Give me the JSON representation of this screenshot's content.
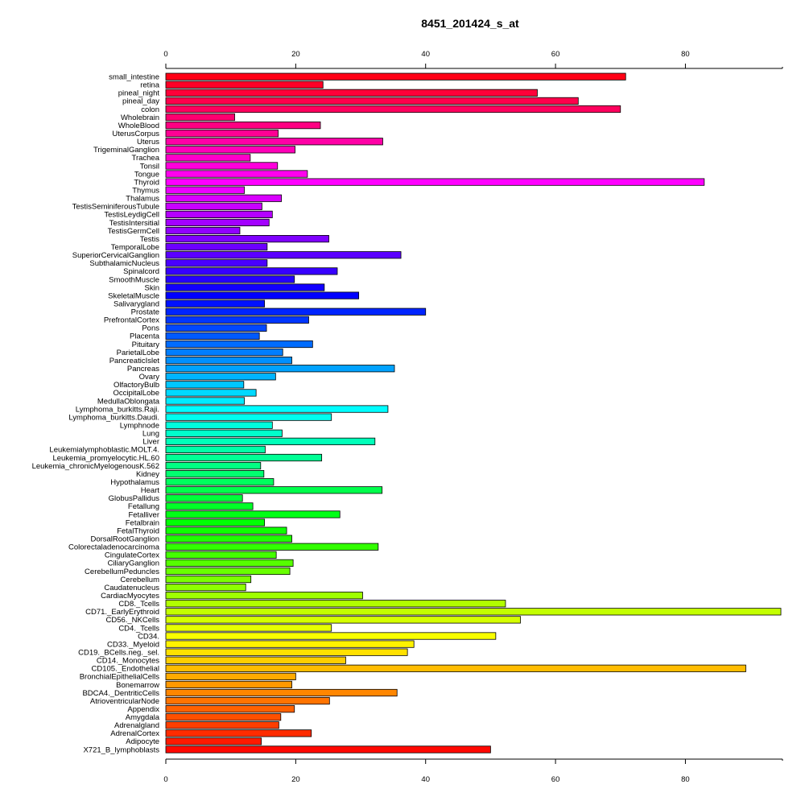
{
  "chart_data": {
    "type": "bar",
    "orientation": "horizontal",
    "title": "8451_201424_s_at",
    "xlabel": "",
    "ylabel": "",
    "xlim": [
      0,
      95
    ],
    "xticks": [
      0,
      20,
      40,
      60,
      80
    ],
    "grid": false,
    "categories": [
      "small_intestine",
      "retina",
      "pineal_night",
      "pineal_day",
      "colon",
      "Wholebrain",
      "WholeBlood",
      "UterusCorpus",
      "Uterus",
      "TrigeminalGanglion",
      "Trachea",
      "Tonsil",
      "Tongue",
      "Thyroid",
      "Thymus",
      "Thalamus",
      "TestisSeminiferousTubule",
      "TestisLeydigCell",
      "TestisIntersitial",
      "TestisGermCell",
      "Testis",
      "TemporalLobe",
      "SuperiorCervicalGanglion",
      "SubthalamicNucleus",
      "Spinalcord",
      "SmoothMuscle",
      "Skin",
      "SkeletalMuscle",
      "Salivarygland",
      "Prostate",
      "PrefrontalCortex",
      "Pons",
      "Placenta",
      "Pituitary",
      "ParietalLobe",
      "PancreaticIslet",
      "Pancreas",
      "Ovary",
      "OlfactoryBulb",
      "OccipitalLobe",
      "MedullaOblongata",
      "Lymphoma_burkitts.Raji.",
      "Lymphoma_burkitts.Daudi.",
      "Lymphnode",
      "Lung",
      "Liver",
      "Leukemialymphoblastic.MOLT.4.",
      "Leukemia_promyelocytic.HL.60",
      "Leukemia_chronicMyelogenousK.562",
      "Kidney",
      "Hypothalamus",
      "Heart",
      "GlobusPallidus",
      "Fetallung",
      "Fetalliver",
      "Fetalbrain",
      "FetalThyroid",
      "DorsalRootGanglion",
      "Colorectaladenocarcinoma",
      "CingulateCortex",
      "CiliaryGanglion",
      "CerebellumPeduncles",
      "Cerebellum",
      "Caudatenucleus",
      "CardiacMyocytes",
      "CD8._Tcells",
      "CD71._EarlyErythroid",
      "CD56._NKCells",
      "CD4._Tcells",
      "CD34.",
      "CD33._Myeloid",
      "CD19._BCells.neg._sel.",
      "CD14._Monocytes",
      "CD105._Endothelial",
      "BronchialEpithelialCells",
      "Bonemarrow",
      "BDCA4._DentriticCells",
      "AtrioventricularNode",
      "Appendix",
      "Amygdala",
      "Adrenalgland",
      "AdrenalCortex",
      "Adipocyte",
      "X721_B_lymphoblasts"
    ],
    "values": [
      70.8,
      24.2,
      57.2,
      63.5,
      70.0,
      10.6,
      23.8,
      17.3,
      33.4,
      19.9,
      13.0,
      17.2,
      21.8,
      82.9,
      12.1,
      17.8,
      14.8,
      16.4,
      15.9,
      11.4,
      25.1,
      15.6,
      36.2,
      15.6,
      26.4,
      19.8,
      24.4,
      29.7,
      15.2,
      40.0,
      22.0,
      15.5,
      14.4,
      22.6,
      18.0,
      19.4,
      35.2,
      16.9,
      12.0,
      13.9,
      12.1,
      34.2,
      25.5,
      16.4,
      17.9,
      32.2,
      15.3,
      24.0,
      14.6,
      15.1,
      16.6,
      33.3,
      11.8,
      13.4,
      26.8,
      15.2,
      18.6,
      19.4,
      32.7,
      17.0,
      19.6,
      19.1,
      13.1,
      12.3,
      30.3,
      52.3,
      94.7,
      54.6,
      25.5,
      50.8,
      38.2,
      37.2,
      27.7,
      89.3,
      20.0,
      19.4,
      35.6,
      25.2,
      19.8,
      17.7,
      17.4,
      22.4,
      14.7,
      50.0
    ]
  }
}
